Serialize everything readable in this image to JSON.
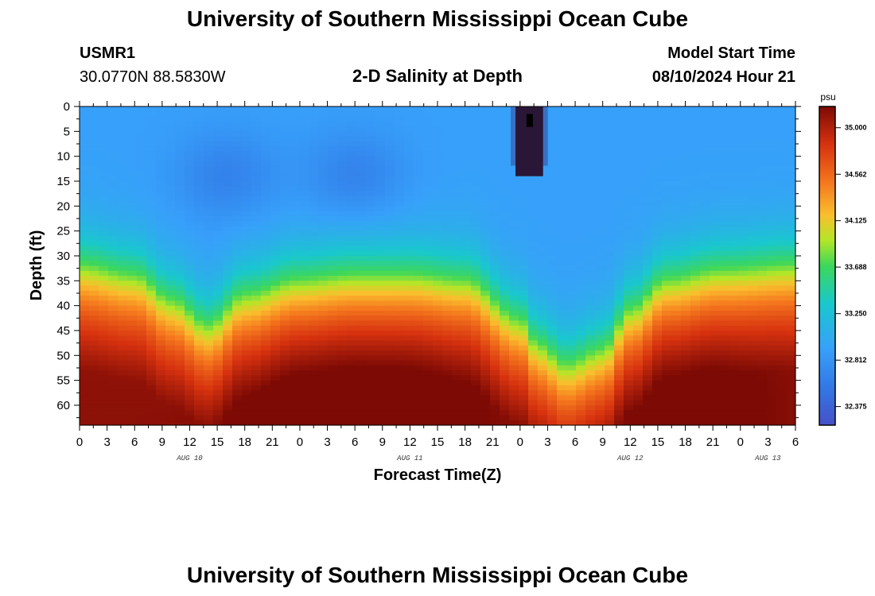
{
  "header": {
    "title": "University of Southern Mississippi Ocean Cube",
    "station_name": "USMR1",
    "station_coords": "30.0770N  88.5830W",
    "plot_title": "2-D Salinity at Depth",
    "start_label": "Model Start Time",
    "start_value": "08/10/2024 Hour 21"
  },
  "footer": {
    "title": "University of Southern Mississippi Ocean Cube"
  },
  "chart_data": {
    "type": "heatmap",
    "title": "2-D Salinity at Depth",
    "xlabel": "Forecast Time(Z)",
    "ylabel": "Depth (ft)",
    "ylim": [
      0,
      64
    ],
    "y_inverted": true,
    "y_ticks": [
      0,
      5,
      10,
      15,
      20,
      25,
      30,
      35,
      40,
      45,
      50,
      55,
      60
    ],
    "x_range_hours": [
      0,
      78
    ],
    "x_tick_labels": [
      "0",
      "3",
      "6",
      "9",
      "12",
      "15",
      "18",
      "21",
      "0",
      "3",
      "6",
      "9",
      "12",
      "15",
      "18",
      "21",
      "0",
      "3",
      "6",
      "9",
      "12",
      "15",
      "18",
      "21",
      "0",
      "3",
      "6"
    ],
    "date_labels": [
      {
        "label": "AUG 10",
        "hour": 12
      },
      {
        "label": "AUG 11",
        "hour": 36
      },
      {
        "label": "AUG 12",
        "hour": 60
      },
      {
        "label": "AUG 13",
        "hour": 75
      }
    ],
    "colorbar": {
      "unit": "psu",
      "range": [
        32.2,
        35.2
      ],
      "ticks": [
        "35.000",
        "34.562",
        "34.125",
        "33.688",
        "33.250",
        "32.812",
        "32.375"
      ]
    },
    "halocline_depth_ft": {
      "hours": [
        0,
        6,
        10,
        14,
        18,
        24,
        30,
        36,
        42,
        48,
        50,
        53,
        57,
        60,
        64,
        70,
        78
      ],
      "depth": [
        31,
        33,
        38,
        43,
        37,
        34,
        33,
        33,
        34,
        42,
        47,
        51,
        48,
        40,
        34,
        32,
        31
      ]
    },
    "surface_low_salinity_patch": {
      "hours": [
        47.5,
        50.5
      ],
      "depth": [
        0,
        14
      ],
      "value_psu": "< 32.375"
    }
  }
}
